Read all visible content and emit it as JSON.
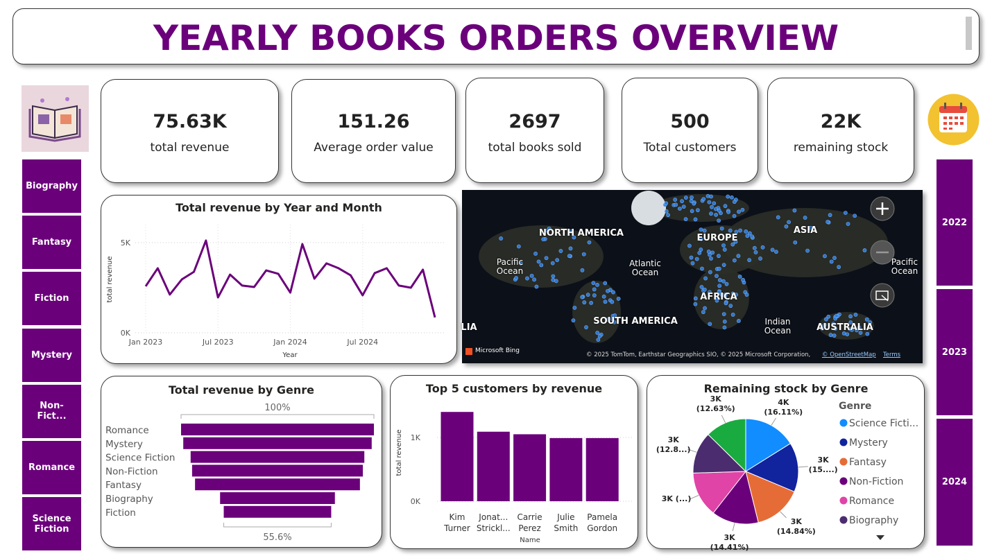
{
  "header": {
    "title": "YEARLY BOOKS ORDERS OVERVIEW"
  },
  "kpis": [
    {
      "value": "75.63K",
      "label": "total revenue"
    },
    {
      "value": 151.26,
      "label": "Average order value"
    },
    {
      "value": 2697,
      "label": "total books sold"
    },
    {
      "value": 500,
      "label": "Total customers"
    },
    {
      "value": "22K",
      "label": "remaining stock"
    }
  ],
  "genre_slicer": [
    "Biography",
    "Fantasy",
    "Fiction",
    "Mystery",
    "Non-Fict...",
    "Romance",
    "Science Fiction"
  ],
  "year_slicer": [
    2022,
    2023,
    2024
  ],
  "map": {
    "labels": [
      "NORTH AMERICA",
      "EUROPE",
      "ASIA",
      "Pacific Ocean",
      "Atlantic Ocean",
      "AFRICA",
      "SOUTH AMERICA",
      "Indian Ocean",
      "AUSTRALIA",
      "LIA",
      "Pacific Ocean"
    ],
    "logo": "Microsoft Bing",
    "attribution": "© 2025 TomTom, Earthstar Geographics SIO, © 2025 Microsoft Corporation,",
    "osm": "© OpenStreetMap",
    "terms": "Terms"
  },
  "chart_data": [
    {
      "type": "line",
      "title": "Total revenue by Year and Month",
      "x_label": "Year",
      "y_label": "total revenue",
      "color": "#6B007B",
      "x": [
        "2023-01",
        "2023-02",
        "2023-03",
        "2023-04",
        "2023-05",
        "2023-06",
        "2023-07",
        "2023-08",
        "2023-09",
        "2023-10",
        "2023-11",
        "2023-12",
        "2024-01",
        "2024-02",
        "2024-03",
        "2024-04",
        "2024-05",
        "2024-06",
        "2024-07",
        "2024-08",
        "2024-09",
        "2024-10",
        "2024-11",
        "2024-12",
        "2025-01"
      ],
      "values": [
        2580,
        3580,
        2120,
        2960,
        3380,
        5120,
        1960,
        3230,
        2620,
        2540,
        3460,
        3270,
        2230,
        4920,
        3000,
        3850,
        3580,
        3190,
        2080,
        3310,
        3580,
        2620,
        2500,
        3500,
        850
      ],
      "xticks": [
        {
          "value": "2023-01",
          "label": "Jan 2023"
        },
        {
          "value": "2023-07",
          "label": "Jul 2023"
        },
        {
          "value": "2024-01",
          "label": "Jan 2024"
        },
        {
          "value": "2024-07",
          "label": "Jul 2024"
        }
      ],
      "ylim": [
        0,
        6000
      ],
      "yticks": [
        {
          "value": 0,
          "label": "0K"
        },
        {
          "value": 5000,
          "label": "5K"
        }
      ],
      "grid": true
    },
    {
      "type": "funnel",
      "title": "Total revenue by Genre",
      "color": "#6B007B",
      "categories": [
        "Romance",
        "Mystery",
        "Science Fiction",
        "Non-Fiction",
        "Fantasy",
        "Biography",
        "Fiction"
      ],
      "values": [
        13100,
        12800,
        11800,
        11600,
        11200,
        7800,
        7300
      ],
      "top_label": "100%",
      "bottom_label": "55.6%"
    },
    {
      "type": "bar",
      "title": "Top 5 customers by revenue",
      "x_label": "Name",
      "y_label": "total revenue",
      "color": "#6B007B",
      "categories": [
        "Kim Turner",
        "Jonat... Strickl...",
        "Carrie Perez",
        "Julie Smith",
        "Pamela Gordon"
      ],
      "values": [
        1400,
        1090,
        1050,
        990,
        990
      ],
      "ylim": [
        0,
        1500
      ],
      "yticks": [
        {
          "value": 0,
          "label": "0K"
        },
        {
          "value": 1000,
          "label": "1K"
        }
      ],
      "grid": true
    },
    {
      "type": "pie",
      "title": "Remaining stock by Genre",
      "legend_title": "Genre",
      "categories": [
        "Science Ficti...",
        "Mystery",
        "Fantasy",
        "Non-Fiction",
        "Romance",
        "Biography",
        null
      ],
      "values": [
        3544,
        3344,
        3265,
        3170,
        3069,
        2829,
        2779
      ],
      "value_labels": [
        "4K (16.11%)",
        "3K (15....)",
        "3K (14.84%)",
        "3K (14.41%)",
        "3K (...)",
        "3K (12.8...)",
        "3K (12.63%)"
      ],
      "colors": [
        "#118DFF",
        "#12239E",
        "#E66C37",
        "#6B007B",
        "#E044A7",
        "#4B2D6F",
        "#1AAB40"
      ],
      "legend": "right"
    }
  ]
}
